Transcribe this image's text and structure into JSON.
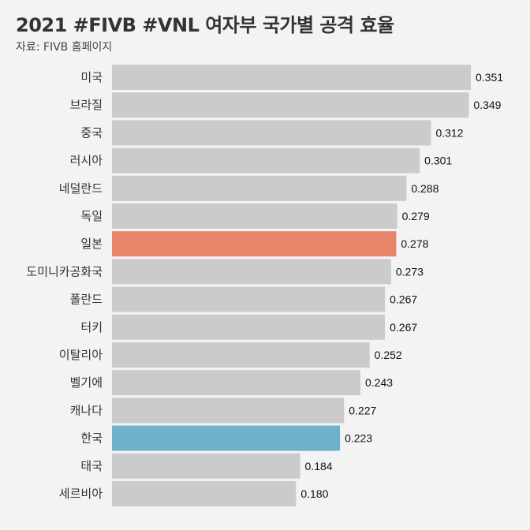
{
  "chart_data": {
    "type": "bar",
    "orientation": "horizontal",
    "title": "2021 #FIVB #VNL 여자부 국가별 공격 효율",
    "subtitle": "자료: FIVB 홈페이지",
    "categories": [
      "미국",
      "브라질",
      "중국",
      "러시아",
      "네덜란드",
      "독일",
      "일본",
      "도미니카공화국",
      "폴란드",
      "터키",
      "이탈리아",
      "벨기에",
      "캐나다",
      "한국",
      "태국",
      "세르비아"
    ],
    "values": [
      0.351,
      0.349,
      0.312,
      0.301,
      0.288,
      0.279,
      0.278,
      0.273,
      0.267,
      0.267,
      0.252,
      0.243,
      0.227,
      0.223,
      0.184,
      0.18
    ],
    "value_labels": [
      "0.351",
      "0.349",
      "0.312",
      "0.301",
      "0.288",
      "0.279",
      "0.278",
      "0.273",
      "0.267",
      "0.267",
      "0.252",
      "0.243",
      "0.227",
      "0.223",
      "0.184",
      "0.180"
    ],
    "xlim": [
      0,
      0.351
    ],
    "grid": false,
    "legend": "none",
    "colors": {
      "default": "#cbcbcb",
      "highlights": {
        "일본": "#e8866b",
        "한국": "#6fb0ca"
      }
    }
  }
}
